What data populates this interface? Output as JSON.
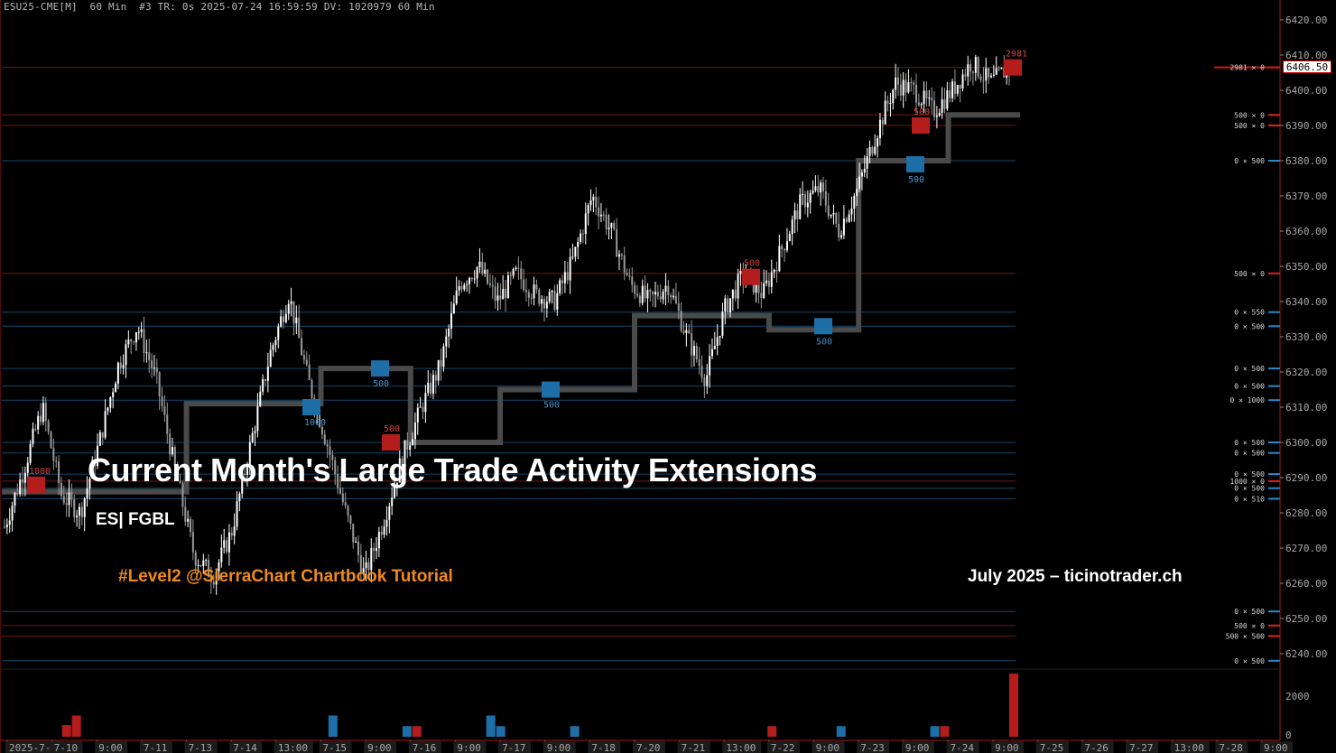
{
  "header": {
    "symbol": "ESU25-CME[M]",
    "timeframe": "60 Min",
    "chart_number": "#3",
    "tr": "TR: 0s",
    "datetime": "2025-07-24 16:59:59",
    "dv": "DV: 1020979",
    "timeframe2": "60 Min"
  },
  "overlay": {
    "title": "Current Month's Large Trade Activity Extensions",
    "subtitle": "ES| FGBL",
    "tagline": "#Level2 @SierraChart Chartbook Tutorial",
    "credit": "July 2025 – ticinotrader.ch"
  },
  "colors": {
    "background": "#000000",
    "up_candle": "#ffffff",
    "down_candle": "#9a9a9a",
    "bid_blue": "#1e6fa8",
    "ask_red": "#b51d1d",
    "step_line": "#4a4a4a",
    "axis_text": "#a8a8a8"
  },
  "chart_data": {
    "type": "candlestick",
    "y_axis": {
      "min": 6235,
      "max": 6420,
      "tick_step": 10,
      "ticks": [
        "6420.00",
        "6410.00",
        "6400.00",
        "6390.00",
        "6380.00",
        "6370.00",
        "6360.00",
        "6350.00",
        "6340.00",
        "6330.00",
        "6320.00",
        "6310.00",
        "6300.00",
        "6290.00",
        "6280.00",
        "6270.00",
        "6260.00",
        "6250.00",
        "6240.00"
      ]
    },
    "last_price": "6406.50",
    "x_axis_labels": [
      "2025-7-9",
      "7-10",
      "9:00",
      "7-11",
      "7-13",
      "7-14",
      "13:00",
      "7-15",
      "9:00",
      "7-16",
      "9:00",
      "7-17",
      "9:00",
      "7-18",
      "7-20",
      "7-21",
      "13:00",
      "7-22",
      "9:00",
      "7-23",
      "9:00",
      "7-24",
      "9:00",
      "7-25",
      "7-26",
      "7-27",
      "13:00",
      "7-28",
      "9:00"
    ],
    "price_path": [
      6276,
      6292,
      6310,
      6285,
      6280,
      6300,
      6322,
      6333,
      6318,
      6292,
      6268,
      6262,
      6275,
      6300,
      6325,
      6342,
      6318,
      6300,
      6280,
      6262,
      6278,
      6296,
      6310,
      6322,
      6345,
      6350,
      6340,
      6348,
      6342,
      6340,
      6352,
      6370,
      6360,
      6345,
      6340,
      6345,
      6330,
      6318,
      6338,
      6348,
      6342,
      6355,
      6368,
      6372,
      6360,
      6372,
      6388,
      6402,
      6400,
      6394,
      6400,
      6408,
      6402,
      6406.5
    ],
    "step_line": [
      {
        "x": "7-9",
        "price": 6286
      },
      {
        "x": "7-13",
        "price": 6311
      },
      {
        "x": "7-15",
        "price": 6321
      },
      {
        "x": "7-16",
        "price": 6300
      },
      {
        "x": "7-17",
        "price": 6315
      },
      {
        "x": "7-20",
        "price": 6336
      },
      {
        "x": "7-22",
        "price": 6332
      },
      {
        "x": "7-23",
        "price": 6380
      },
      {
        "x": "7-24",
        "price": 6393
      }
    ],
    "large_trades": [
      {
        "price": 6288,
        "side": "ask",
        "label": "1000"
      },
      {
        "price": 6310,
        "side": "bid",
        "label": "1000"
      },
      {
        "price": 6321,
        "side": "bid",
        "label": "500"
      },
      {
        "price": 6300,
        "side": "ask",
        "label": "500"
      },
      {
        "price": 6315,
        "side": "bid",
        "label": "500"
      },
      {
        "price": 6347,
        "side": "ask",
        "label": "500"
      },
      {
        "price": 6333,
        "side": "bid",
        "label": "500"
      },
      {
        "price": 6379,
        "side": "bid",
        "label": "500"
      },
      {
        "price": 6390,
        "side": "ask",
        "label": "500"
      },
      {
        "price": 6406.5,
        "side": "ask",
        "label": "2981"
      }
    ],
    "dom_levels": [
      {
        "price": 6406.5,
        "label": "2981 × 0",
        "side": "ask"
      },
      {
        "price": 6393,
        "label": "500 × 0",
        "side": "ask"
      },
      {
        "price": 6390,
        "label": "500 × 0",
        "side": "ask"
      },
      {
        "price": 6380,
        "label": "0 × 500",
        "side": "bid"
      },
      {
        "price": 6348,
        "label": "500 × 0",
        "side": "ask"
      },
      {
        "price": 6337,
        "label": "0 × 550",
        "side": "bid"
      },
      {
        "price": 6333,
        "label": "0 × 500",
        "side": "bid"
      },
      {
        "price": 6321,
        "label": "0 × 500",
        "side": "bid"
      },
      {
        "price": 6316,
        "label": "0 × 500",
        "side": "bid"
      },
      {
        "price": 6312,
        "label": "0 × 1000",
        "side": "bid"
      },
      {
        "price": 6300,
        "label": "0 × 500",
        "side": "bid"
      },
      {
        "price": 6297,
        "label": "0 × 500",
        "side": "bid"
      },
      {
        "price": 6291,
        "label": "0 × 500",
        "side": "bid"
      },
      {
        "price": 6289,
        "label": "1000 × 0",
        "side": "ask"
      },
      {
        "price": 6287,
        "label": "0 × 500",
        "side": "bid"
      },
      {
        "price": 6284,
        "label": "0 × 510",
        "side": "bid"
      },
      {
        "price": 6252,
        "label": "0 × 500",
        "side": "bid"
      },
      {
        "price": 6248,
        "label": "500 × 0",
        "side": "ask"
      },
      {
        "price": 6245,
        "label": "500 × 500",
        "side": "ask"
      },
      {
        "price": 6238,
        "label": "0 × 500",
        "side": "bid"
      }
    ],
    "volume_axis_label": "2000",
    "volume_bars": [
      {
        "slot": 0.04,
        "value": 550,
        "side": "ask"
      },
      {
        "slot": 0.05,
        "value": 1000,
        "side": "ask"
      },
      {
        "slot": 0.31,
        "value": 1000,
        "side": "bid"
      },
      {
        "slot": 0.385,
        "value": 500,
        "side": "bid"
      },
      {
        "slot": 0.395,
        "value": 500,
        "side": "ask"
      },
      {
        "slot": 0.47,
        "value": 1000,
        "side": "bid"
      },
      {
        "slot": 0.48,
        "value": 500,
        "side": "bid"
      },
      {
        "slot": 0.555,
        "value": 500,
        "side": "bid"
      },
      {
        "slot": 0.755,
        "value": 500,
        "side": "ask"
      },
      {
        "slot": 0.825,
        "value": 500,
        "side": "bid"
      },
      {
        "slot": 0.92,
        "value": 500,
        "side": "bid"
      },
      {
        "slot": 0.93,
        "value": 500,
        "side": "ask"
      },
      {
        "slot": 1.0,
        "value": 2981,
        "side": "ask"
      }
    ]
  }
}
